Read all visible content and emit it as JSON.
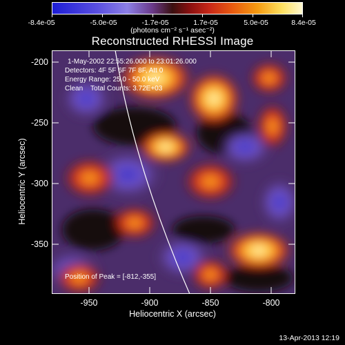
{
  "colorbar": {
    "labels": [
      "-8.4e-05",
      "-5.0e-05",
      "-1.7e-05",
      "1.7e-05",
      "5.0e-05",
      "8.4e-05"
    ],
    "units": "(photons cm⁻² s⁻¹ asec⁻²)"
  },
  "title": "Reconstructed RHESSI Image",
  "overlay": {
    "time_range": "1-May-2002 22:55:26.000 to 23:01:26.000",
    "detectors": "Detectors: 4F 5F 6F 7F 8F, Att 0",
    "energy": "Energy Range: 25.0 - 50.0 keV",
    "clean": "Clean    Total Counts: 3.72E+03",
    "peak": "Position of Peak = [-812,-355]"
  },
  "axes": {
    "xlabel": "Heliocentric X (arcsec)",
    "ylabel": "Heliocentric Y (arcsec)",
    "x_ticks": [
      "-950",
      "-900",
      "-850",
      "-800"
    ],
    "y_ticks": [
      "-200",
      "-250",
      "-300",
      "-350"
    ]
  },
  "timestamp": "13-Apr-2013 12:19",
  "colors": {
    "background": "#000000",
    "text": "#ffffff"
  }
}
